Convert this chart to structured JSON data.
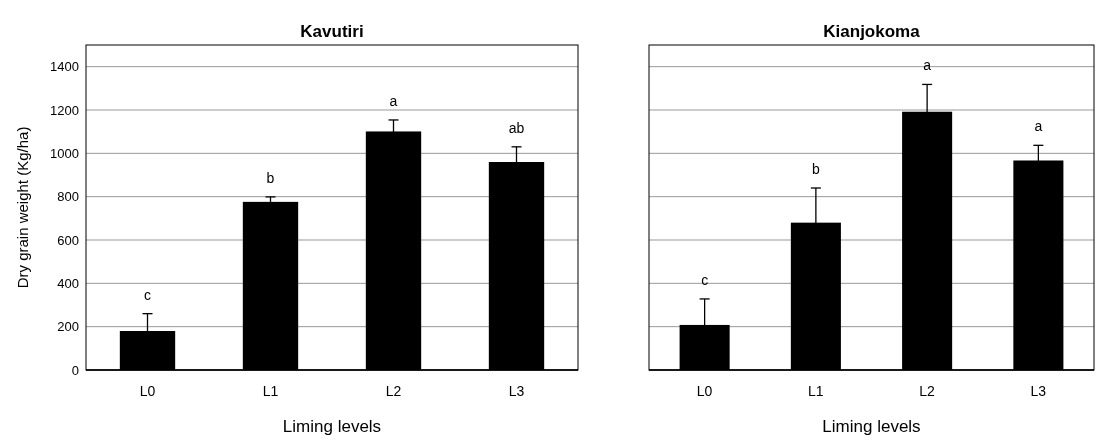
{
  "chart_data": [
    {
      "type": "bar",
      "title": "Kavutiri",
      "xlabel": "Liming levels",
      "ylabel": "Dry grain weight  (Kg/ha)",
      "categories": [
        "L0",
        "L1",
        "L2",
        "L3"
      ],
      "values": [
        180,
        776,
        1101,
        960
      ],
      "errors": [
        80,
        23,
        53,
        70
      ],
      "color": "#000000",
      "ylim": [
        0,
        1500
      ],
      "yticks": [
        0,
        200,
        400,
        600,
        800,
        1000,
        1200,
        1400
      ],
      "grid": "y",
      "annotations": [
        "c",
        "b",
        "a",
        "ab"
      ]
    },
    {
      "type": "bar",
      "title": "Kianjokoma",
      "xlabel": "Liming levels",
      "categories": [
        "L0",
        "L1",
        "L2",
        "L3"
      ],
      "values": [
        208,
        680,
        1192,
        967
      ],
      "errors": [
        120,
        160,
        126,
        70
      ],
      "color": "#000000",
      "ylim": [
        0,
        1500
      ],
      "yticks": [
        0,
        200,
        400,
        600,
        800,
        1000,
        1200,
        1400
      ],
      "grid": "y",
      "tick_labels": "x",
      "annotations": [
        "c",
        "b",
        "a",
        "a"
      ]
    }
  ]
}
